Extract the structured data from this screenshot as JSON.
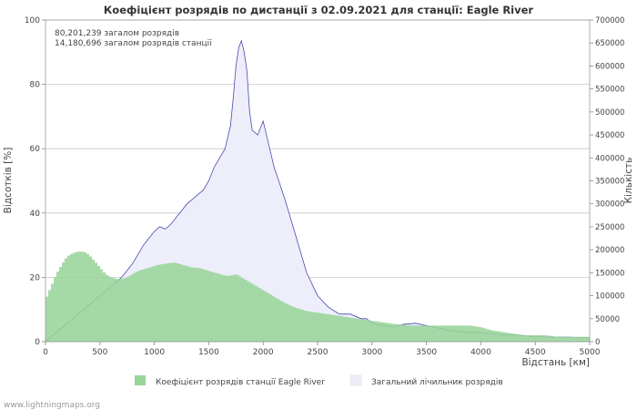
{
  "chart_data": {
    "type": "bar",
    "title": "Коефіцієнт розрядів по дистанції з 02.09.2021 для станції: Eagle River",
    "annotations": [
      "80,201,239 загалом розрядів",
      "14,180,696 загалом розрядів станції"
    ],
    "xlabel": "Відстань   [км]",
    "ylabel": "Відсотків   [%]",
    "y2label": "Кількість",
    "xlim": [
      0,
      5000
    ],
    "ylim": [
      0,
      100
    ],
    "y2lim": [
      0,
      700000
    ],
    "x_ticks": [
      "0",
      "500",
      "1000",
      "1500",
      "2000",
      "2500",
      "3000",
      "3500",
      "4000",
      "4500",
      "5000"
    ],
    "y_ticks": [
      "0",
      "20",
      "40",
      "60",
      "80",
      "100"
    ],
    "y2_ticks": [
      "0",
      "50000",
      "100000",
      "150000",
      "200000",
      "250000",
      "300000",
      "350000",
      "400000",
      "450000",
      "500000",
      "550000",
      "600000",
      "650000",
      "700000"
    ],
    "grid": true,
    "legend_position": "bottom",
    "series": [
      {
        "name": "Коефіцієнт розрядів станції Eagle River",
        "axis": "left",
        "color": "#98d498",
        "x": [
          0,
          50,
          100,
          150,
          200,
          250,
          300,
          350,
          400,
          450,
          500,
          550,
          600,
          650,
          700,
          750,
          800,
          850,
          900,
          950,
          1000,
          1050,
          1100,
          1150,
          1200,
          1250,
          1300,
          1350,
          1400,
          1450,
          1500,
          1550,
          1600,
          1650,
          1700,
          1750,
          1800,
          1850,
          1900,
          1950,
          2000,
          2100,
          2200,
          2300,
          2400,
          2500,
          2600,
          2700,
          2800,
          2900,
          3000,
          3100,
          3200,
          3300,
          3400,
          3500,
          3600,
          3700,
          3800,
          3900,
          4000,
          4100,
          4200,
          4300,
          4400,
          4500,
          4600,
          4700,
          4800,
          4900,
          5000
        ],
        "values": [
          13,
          17,
          21,
          24,
          26.5,
          27.5,
          28,
          28,
          27,
          25,
          23,
          21,
          20,
          19.5,
          19.5,
          20,
          21,
          22,
          22.5,
          23,
          23.5,
          24,
          24.2,
          24.5,
          24.5,
          24,
          23.5,
          23,
          23,
          22.5,
          22,
          21.5,
          21,
          20.5,
          20.5,
          21,
          20,
          19,
          18,
          17,
          16,
          14,
          12,
          10.5,
          9.5,
          9,
          8.5,
          8,
          7.5,
          7,
          6.5,
          6,
          5.5,
          5.2,
          5,
          5,
          5,
          5,
          5,
          5,
          4.5,
          3.5,
          3,
          2.5,
          2,
          2,
          2,
          1.5,
          1.5,
          1.5,
          1.5
        ]
      },
      {
        "name": "Загальний лічильник розрядів",
        "axis": "right",
        "color": "#eeeefa",
        "line_color": "#4a4ab0",
        "x": [
          0,
          100,
          200,
          300,
          400,
          500,
          600,
          700,
          800,
          900,
          1000,
          1050,
          1100,
          1150,
          1200,
          1250,
          1300,
          1350,
          1400,
          1450,
          1500,
          1550,
          1600,
          1650,
          1700,
          1725,
          1750,
          1775,
          1800,
          1825,
          1850,
          1875,
          1900,
          1950,
          2000,
          2050,
          2100,
          2200,
          2300,
          2400,
          2500,
          2600,
          2700,
          2800,
          2900,
          2950,
          3000,
          3100,
          3200,
          3300,
          3400,
          3500,
          3600,
          3700,
          3800,
          3900,
          4000,
          4100,
          4200,
          4300,
          4400,
          4500,
          4600,
          4700,
          4800,
          4900,
          5000
        ],
        "values": [
          0,
          20000,
          40000,
          60000,
          80000,
          100000,
          120000,
          140000,
          170000,
          210000,
          240000,
          250000,
          245000,
          255000,
          270000,
          285000,
          300000,
          310000,
          320000,
          330000,
          350000,
          380000,
          400000,
          420000,
          470000,
          530000,
          600000,
          640000,
          655000,
          630000,
          590000,
          500000,
          460000,
          450000,
          480000,
          430000,
          380000,
          310000,
          230000,
          150000,
          100000,
          75000,
          60000,
          60000,
          50000,
          50000,
          40000,
          35000,
          33000,
          38000,
          40000,
          35000,
          30000,
          25000,
          22000,
          20000,
          20000,
          17000,
          15000,
          15000,
          13000,
          11000,
          10000,
          10000,
          10000,
          9000,
          9000
        ]
      }
    ]
  },
  "watermark": "www.lightningmaps.org"
}
